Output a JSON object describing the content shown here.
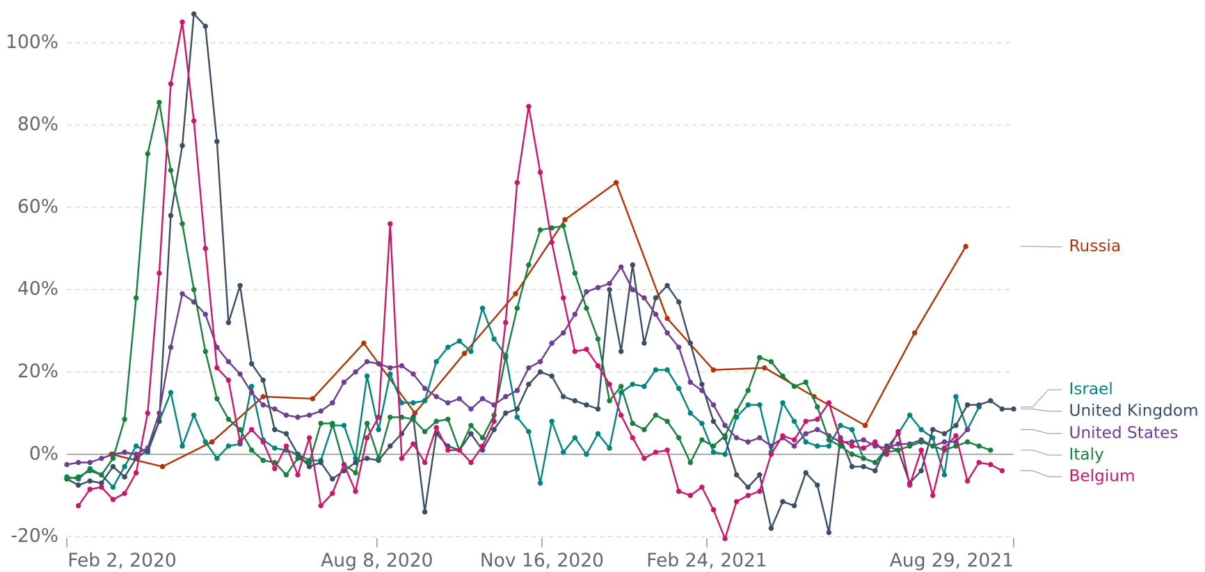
{
  "chart_data": {
    "type": "line",
    "grid": true,
    "xlim": [
      "2020-02-02",
      "2021-08-29"
    ],
    "xticks": [
      {
        "value": "2020-02-02",
        "label": "Feb 2, 2020"
      },
      {
        "value": "2020-08-08",
        "label": "Aug 8, 2020"
      },
      {
        "value": "2020-11-16",
        "label": "Nov 16, 2020"
      },
      {
        "value": "2021-02-24",
        "label": "Feb 24, 2021"
      },
      {
        "value": "2021-08-29",
        "label": "Aug 29, 2021"
      }
    ],
    "ylim": [
      -20,
      107
    ],
    "yticks": [
      {
        "value": -20,
        "label": "-20%"
      },
      {
        "value": 0,
        "label": "0%"
      },
      {
        "value": 20,
        "label": "20%"
      },
      {
        "value": 40,
        "label": "40%"
      },
      {
        "value": 60,
        "label": "60%"
      },
      {
        "value": 80,
        "label": "80%"
      },
      {
        "value": 100,
        "label": "100%"
      }
    ],
    "x": [
      "2020-02-02",
      "2020-02-09",
      "2020-02-16",
      "2020-02-23",
      "2020-03-01",
      "2020-03-08",
      "2020-03-15",
      "2020-03-22",
      "2020-03-29",
      "2020-04-05",
      "2020-04-12",
      "2020-04-19",
      "2020-04-26",
      "2020-05-03",
      "2020-05-10",
      "2020-05-17",
      "2020-05-24",
      "2020-05-31",
      "2020-06-07",
      "2020-06-14",
      "2020-06-21",
      "2020-06-28",
      "2020-07-05",
      "2020-07-12",
      "2020-07-19",
      "2020-07-26",
      "2020-08-02",
      "2020-08-09",
      "2020-08-16",
      "2020-08-23",
      "2020-08-30",
      "2020-09-06",
      "2020-09-13",
      "2020-09-20",
      "2020-09-27",
      "2020-10-04",
      "2020-10-11",
      "2020-10-18",
      "2020-10-25",
      "2020-11-01",
      "2020-11-08",
      "2020-11-15",
      "2020-11-22",
      "2020-11-29",
      "2020-12-06",
      "2020-12-13",
      "2020-12-20",
      "2020-12-27",
      "2021-01-03",
      "2021-01-10",
      "2021-01-17",
      "2021-01-24",
      "2021-01-31",
      "2021-02-07",
      "2021-02-14",
      "2021-02-21",
      "2021-02-28",
      "2021-03-07",
      "2021-03-14",
      "2021-03-21",
      "2021-03-28",
      "2021-04-04",
      "2021-04-11",
      "2021-04-18",
      "2021-04-25",
      "2021-05-02",
      "2021-05-09",
      "2021-05-16",
      "2021-05-23",
      "2021-05-30",
      "2021-06-06",
      "2021-06-13",
      "2021-06-20",
      "2021-06-27",
      "2021-07-04",
      "2021-07-11",
      "2021-07-18",
      "2021-07-25",
      "2021-08-01",
      "2021-08-08",
      "2021-08-15",
      "2021-08-22",
      "2021-08-29"
    ],
    "series": [
      {
        "name": "Russia",
        "color": "#b13507",
        "x": [
          "2020-02-29",
          "2020-03-31",
          "2020-04-30",
          "2020-05-31",
          "2020-06-30",
          "2020-07-31",
          "2020-08-31",
          "2020-09-30",
          "2020-10-31",
          "2020-11-30",
          "2020-12-31",
          "2021-01-31",
          "2021-02-28",
          "2021-03-31",
          "2021-04-30",
          "2021-05-31",
          "2021-06-30",
          "2021-07-31"
        ],
        "values": [
          0,
          -3,
          3,
          14,
          13.5,
          27,
          10,
          24.5,
          39,
          57,
          66,
          33,
          20.5,
          21,
          14,
          7,
          29.5,
          50.5
        ]
      },
      {
        "name": "Israel",
        "color": "#00847e",
        "values": [
          -5.5,
          -6,
          -3.5,
          -5,
          -8,
          -3,
          2,
          0.5,
          8,
          15,
          2,
          9.5,
          3,
          -1,
          2,
          2.5,
          16.5,
          3.5,
          1.5,
          1,
          0,
          -1.5,
          -1.5,
          7,
          7,
          -1,
          19,
          6,
          19.5,
          12.5,
          12.5,
          13,
          22.5,
          26,
          27.5,
          25,
          35.5,
          28,
          24,
          9,
          5.5,
          -7,
          8,
          0.5,
          4,
          0,
          5,
          1.5,
          15,
          17,
          16.5,
          20.5,
          20.5,
          16,
          10,
          7.5,
          0.5,
          0,
          9,
          12,
          12,
          0.5,
          12.5,
          8,
          3,
          2,
          2,
          7,
          6,
          -1,
          -2,
          1.5,
          5,
          9.5,
          6,
          4,
          -5,
          14,
          6,
          11.5,
          null,
          null,
          null
        ]
      },
      {
        "name": "United Kingdom",
        "color": "#3c4e66",
        "values": [
          -6,
          -7.5,
          -6.5,
          -7,
          -3,
          -5.5,
          -1,
          1,
          8,
          58,
          75,
          107,
          104,
          76,
          32,
          41,
          22,
          18,
          6,
          5,
          0,
          -3,
          -2,
          -6,
          -4,
          -2,
          -1,
          -1.5,
          2,
          5,
          9,
          -14,
          5,
          2,
          1,
          5,
          1,
          6,
          10,
          11,
          17,
          20,
          19,
          14,
          13,
          12,
          11,
          40,
          25,
          46,
          27,
          38,
          41,
          37,
          27,
          17,
          8,
          4,
          -5,
          -8,
          -5,
          -18,
          -11.5,
          -12.5,
          -4.5,
          -7.5,
          -19,
          4,
          -3,
          -3,
          -4,
          2,
          1,
          -7,
          -4,
          6,
          5,
          7,
          12,
          12,
          13,
          11,
          11
        ]
      },
      {
        "name": "United States",
        "color": "#6d3e91",
        "values": [
          -2.5,
          -2,
          -2,
          -1,
          0,
          0.5,
          0,
          1.5,
          10,
          26,
          39,
          37,
          34,
          26,
          22.5,
          19.5,
          15,
          12,
          11,
          9.5,
          9,
          9.5,
          10.5,
          12.5,
          17.5,
          20,
          22.5,
          22,
          21,
          21.5,
          19.5,
          16,
          14,
          12.5,
          13.5,
          11,
          13.5,
          12,
          14,
          15.5,
          21,
          22.5,
          27,
          29.5,
          34,
          39.5,
          40.5,
          41.5,
          45.5,
          40,
          38,
          34,
          29.5,
          26,
          17.5,
          15.5,
          12,
          7,
          4,
          3,
          4,
          2,
          4,
          2,
          5,
          6,
          4.5,
          3,
          3,
          3.5,
          2,
          1.5,
          2.5,
          2.5,
          3.5,
          2,
          3,
          3,
          6,
          null,
          null,
          null,
          null
        ]
      },
      {
        "name": "Italy",
        "color": "#18803c",
        "values": [
          -6,
          -5.5,
          -4,
          -5,
          -1,
          8.5,
          38,
          73,
          85.5,
          69,
          56,
          40,
          25,
          13.5,
          8.5,
          6,
          1,
          -1.5,
          -2,
          -5,
          -1,
          -2,
          7.5,
          7.5,
          -2.5,
          -4.5,
          7.5,
          -1,
          9,
          9,
          8.5,
          5.5,
          8,
          8.5,
          1,
          7,
          4,
          9.5,
          23.5,
          35.5,
          46,
          54.5,
          55,
          55.5,
          44,
          35.5,
          28,
          13,
          16.5,
          7.5,
          6,
          9.5,
          8,
          4,
          -2,
          3.5,
          2,
          4.5,
          10.5,
          15.5,
          23.5,
          22.5,
          19,
          16.5,
          17.5,
          11.5,
          3.5,
          2,
          0,
          -1,
          -2,
          0.5,
          1,
          2,
          3,
          2,
          1,
          2,
          3,
          2,
          1,
          null,
          null
        ]
      },
      {
        "name": "Belgium",
        "color": "#c9186b",
        "values": [
          null,
          -12.5,
          -8.5,
          -8,
          -11,
          -9.5,
          -4.5,
          10,
          44,
          90,
          105,
          81,
          50,
          21,
          18,
          3,
          6,
          3,
          -3.5,
          2,
          -5,
          4,
          -12.5,
          -9.5,
          -2.5,
          -9,
          4,
          9,
          56,
          -1,
          2.5,
          -2,
          6.5,
          1,
          1,
          -2,
          2,
          8,
          32,
          66,
          84.5,
          68.5,
          51.5,
          38,
          25,
          25.5,
          21.5,
          17,
          9.5,
          4,
          -1,
          0.5,
          1,
          -9,
          -10,
          -8,
          -13.5,
          -20.5,
          -11.5,
          -10,
          -9,
          0,
          4.5,
          3.5,
          8,
          8.5,
          12.5,
          3.5,
          2,
          1.5,
          3,
          0,
          5.5,
          -7.5,
          1,
          -10,
          1.5,
          4.5,
          -6.5,
          -2,
          -2.5,
          -4,
          null
        ]
      }
    ]
  }
}
